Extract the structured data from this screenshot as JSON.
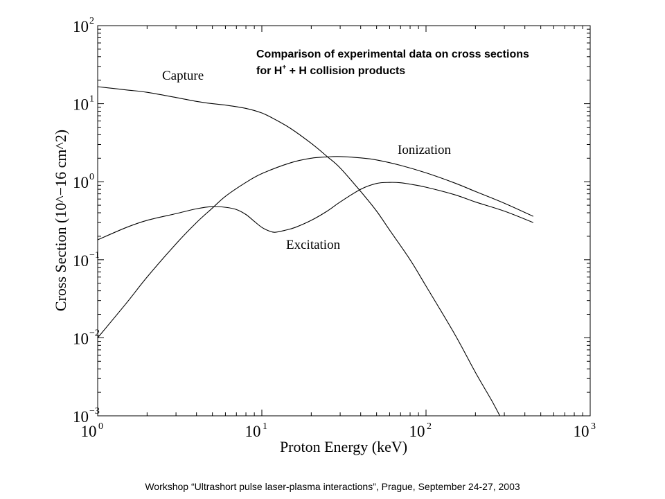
{
  "chart_data": {
    "type": "line",
    "title_line1": "Comparison of experimental data on cross sections",
    "title_line2_pre": "for H",
    "title_line2_sup": "+",
    "title_line2_post": " + H collision products",
    "xlabel": "Proton Energy (keV)",
    "ylabel": "Cross Section (10^−16 cm^2)",
    "x_scale": "log",
    "y_scale": "log",
    "xlim": [
      1,
      1000
    ],
    "ylim": [
      0.001,
      100
    ],
    "grid": false,
    "x_ticks": [
      {
        "base": "10",
        "exp": "0",
        "value": 1
      },
      {
        "base": "10",
        "exp": "1",
        "value": 10
      },
      {
        "base": "10",
        "exp": "2",
        "value": 100
      },
      {
        "base": "10",
        "exp": "3",
        "value": 1000
      }
    ],
    "y_ticks": [
      {
        "base": "10",
        "exp": "2",
        "value": 100
      },
      {
        "base": "10",
        "exp": "1",
        "value": 10
      },
      {
        "base": "10",
        "exp": "0",
        "value": 1
      },
      {
        "base": "10",
        "exp": "−1",
        "value": 0.1
      },
      {
        "base": "10",
        "exp": "−2",
        "value": 0.01
      },
      {
        "base": "10",
        "exp": "−3",
        "value": 0.001
      }
    ],
    "series": [
      {
        "name": "Capture",
        "x": [
          1,
          1.5,
          2,
          3,
          4,
          5,
          6,
          8,
          10,
          12,
          15,
          20,
          25,
          30,
          40,
          50,
          60,
          80,
          100,
          150,
          200,
          250,
          300
        ],
        "y": [
          16.5,
          15,
          14,
          12,
          10.7,
          10,
          9.6,
          8.7,
          7.6,
          6.3,
          4.8,
          3.1,
          2.1,
          1.5,
          0.75,
          0.42,
          0.24,
          0.1,
          0.046,
          0.011,
          0.0036,
          0.0016,
          0.00078
        ]
      },
      {
        "name": "Ionization",
        "x": [
          1,
          1.5,
          2,
          3,
          4,
          5,
          6,
          8,
          10,
          15,
          20,
          25,
          30,
          40,
          50,
          70,
          100,
          150,
          200,
          300,
          450
        ],
        "y": [
          0.01,
          0.028,
          0.06,
          0.16,
          0.3,
          0.46,
          0.65,
          0.98,
          1.27,
          1.75,
          2.0,
          2.08,
          2.1,
          2.02,
          1.9,
          1.62,
          1.3,
          0.96,
          0.75,
          0.53,
          0.36
        ]
      },
      {
        "name": "Excitation",
        "x": [
          1,
          1.5,
          2,
          3,
          4,
          5,
          6,
          7,
          8,
          9,
          10,
          11,
          12,
          14,
          16,
          20,
          25,
          30,
          40,
          50,
          60,
          70,
          80,
          100,
          150,
          200,
          300,
          450
        ],
        "y": [
          0.18,
          0.26,
          0.32,
          0.39,
          0.45,
          0.48,
          0.47,
          0.44,
          0.38,
          0.31,
          0.26,
          0.235,
          0.225,
          0.24,
          0.26,
          0.32,
          0.42,
          0.55,
          0.8,
          0.95,
          0.98,
          0.97,
          0.93,
          0.85,
          0.68,
          0.55,
          0.42,
          0.3
        ]
      }
    ]
  },
  "footer": "Workshop “Ultrashort pulse laser-plasma interactions”, Prague, September 24-27, 2003"
}
